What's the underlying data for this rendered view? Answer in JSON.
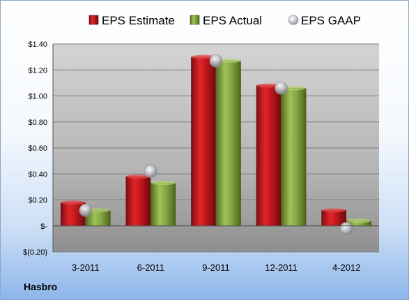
{
  "chart_data": {
    "type": "bar",
    "categories": [
      "3-2011",
      "6-2011",
      "9-2011",
      "12-2011",
      "4-2012"
    ],
    "series": [
      {
        "name": "EPS Estimate",
        "kind": "bar",
        "color": "#c0171b",
        "values": [
          0.18,
          0.38,
          1.3,
          1.08,
          0.12
        ]
      },
      {
        "name": "EPS Actual",
        "kind": "bar",
        "color": "#86a844",
        "values": [
          0.12,
          0.33,
          1.27,
          1.06,
          0.04
        ]
      },
      {
        "name": "EPS GAAP",
        "kind": "marker",
        "color": "#b8bcc4",
        "values": [
          0.12,
          0.42,
          1.27,
          1.06,
          -0.02
        ]
      }
    ],
    "yticks": [
      {
        "value": -0.2,
        "label": "$(0.20)"
      },
      {
        "value": 0,
        "label": "$-"
      },
      {
        "value": 0.2,
        "label": "$0.20"
      },
      {
        "value": 0.4,
        "label": "$0.40"
      },
      {
        "value": 0.6,
        "label": "$0.60"
      },
      {
        "value": 0.8,
        "label": "$0.80"
      },
      {
        "value": 1.0,
        "label": "$1.00"
      },
      {
        "value": 1.2,
        "label": "$1.20"
      },
      {
        "value": 1.4,
        "label": "$1.40"
      }
    ],
    "ylim": [
      -0.2,
      1.4
    ],
    "grid": true,
    "legend_position": "top",
    "company": "Hasbro"
  }
}
